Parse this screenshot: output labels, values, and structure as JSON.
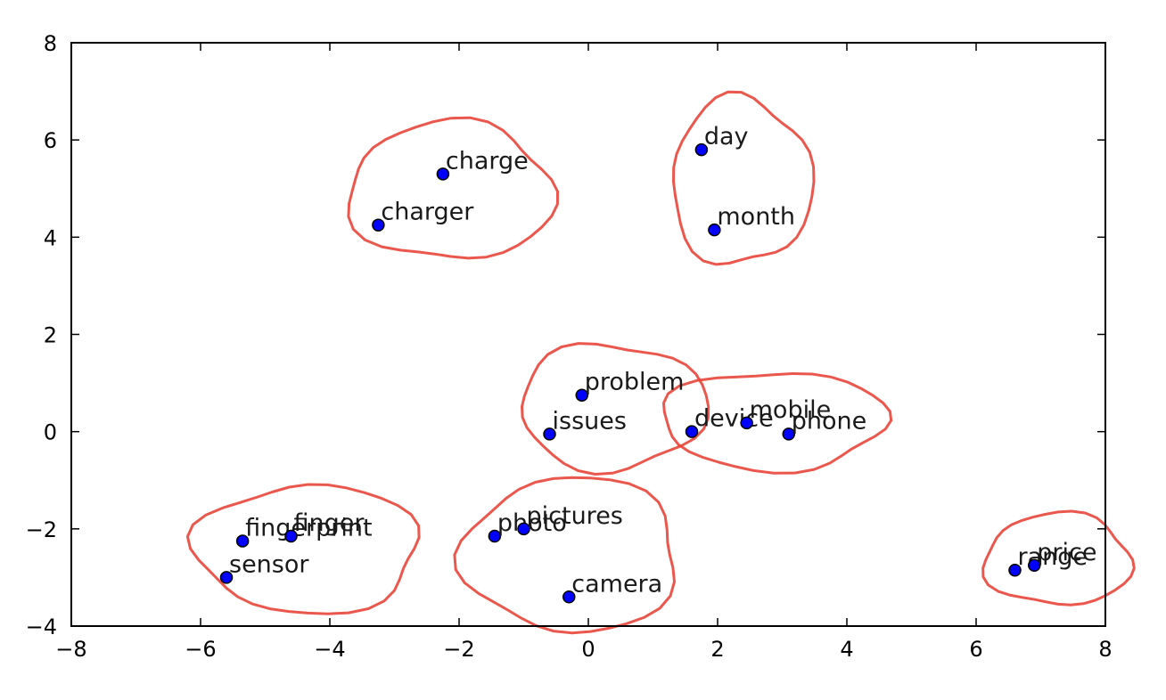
{
  "chart_data": {
    "type": "scatter",
    "title": "",
    "xlabel": "",
    "ylabel": "",
    "xlim": [
      -8,
      8
    ],
    "ylim": [
      -4,
      8
    ],
    "x_ticks": [
      -8,
      -6,
      -4,
      -2,
      0,
      2,
      4,
      6,
      8
    ],
    "y_ticks": [
      -4,
      -2,
      0,
      2,
      4,
      6,
      8
    ],
    "grid": false,
    "marker_color": "#0000ff",
    "annotation_color": "#e8463a",
    "points": [
      {
        "label": "charge",
        "x": -2.25,
        "y": 5.3
      },
      {
        "label": "charger",
        "x": -3.25,
        "y": 4.25
      },
      {
        "label": "day",
        "x": 1.75,
        "y": 5.8
      },
      {
        "label": "month",
        "x": 1.95,
        "y": 4.15
      },
      {
        "label": "problem",
        "x": -0.1,
        "y": 0.75
      },
      {
        "label": "issues",
        "x": -0.6,
        "y": -0.05
      },
      {
        "label": "device",
        "x": 1.6,
        "y": 0.0
      },
      {
        "label": "mobile",
        "x": 2.45,
        "y": 0.18
      },
      {
        "label": "phone",
        "x": 3.1,
        "y": -0.05
      },
      {
        "label": "fingerprint",
        "x": -5.35,
        "y": -2.25
      },
      {
        "label": "finger",
        "x": -4.6,
        "y": -2.15
      },
      {
        "label": "sensor",
        "x": -5.6,
        "y": -3.0
      },
      {
        "label": "photo",
        "x": -1.45,
        "y": -2.15
      },
      {
        "label": "pictures",
        "x": -1.0,
        "y": -2.0
      },
      {
        "label": "camera",
        "x": -0.3,
        "y": -3.4
      },
      {
        "label": "range",
        "x": 6.6,
        "y": -2.85
      },
      {
        "label": "price",
        "x": 6.9,
        "y": -2.75
      }
    ],
    "clusters": [
      {
        "members": [
          "charge",
          "charger"
        ]
      },
      {
        "members": [
          "day",
          "month"
        ]
      },
      {
        "members": [
          "problem",
          "issues"
        ]
      },
      {
        "members": [
          "device",
          "mobile",
          "phone"
        ]
      },
      {
        "members": [
          "fingerprint",
          "finger",
          "sensor"
        ]
      },
      {
        "members": [
          "photo",
          "pictures",
          "camera"
        ]
      },
      {
        "members": [
          "range",
          "price"
        ]
      }
    ]
  }
}
